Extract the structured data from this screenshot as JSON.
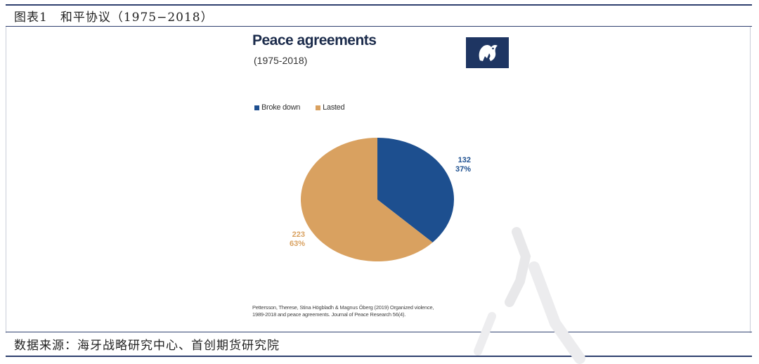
{
  "header": {
    "title": "图表1　和平协议（1975−2018）"
  },
  "footer": {
    "source": "数据来源：海牙战略研究中心、首创期货研究院"
  },
  "chart_data": {
    "type": "pie",
    "title": "Peace agreements",
    "subtitle": "(1975-2018)",
    "legend_position": "top-left",
    "slices": [
      {
        "name": "Broke down",
        "value": 132,
        "percent": "37%",
        "color": "#1d4f8f"
      },
      {
        "name": "Lasted",
        "value": 223,
        "percent": "63%",
        "color": "#d9a160"
      }
    ],
    "labels": [
      {
        "value": "132",
        "percent": "37%"
      },
      {
        "value": "223",
        "percent": "63%"
      }
    ],
    "citation_line1": "Pettersson, Therese, Stina Högbladh & Magnus Öberg (2019) Organized violence,",
    "citation_line2": "1989-2018 and peace agreements. Journal of Peace Research 56(4)."
  },
  "colors": {
    "frame": "#2e3f6e",
    "logo_bg": "#1e3562",
    "label_blue": "#1d4f8f",
    "label_orange": "#d9a160"
  },
  "icons": {
    "logo": "dove-logo-icon",
    "watermark": "watermark-icon"
  }
}
